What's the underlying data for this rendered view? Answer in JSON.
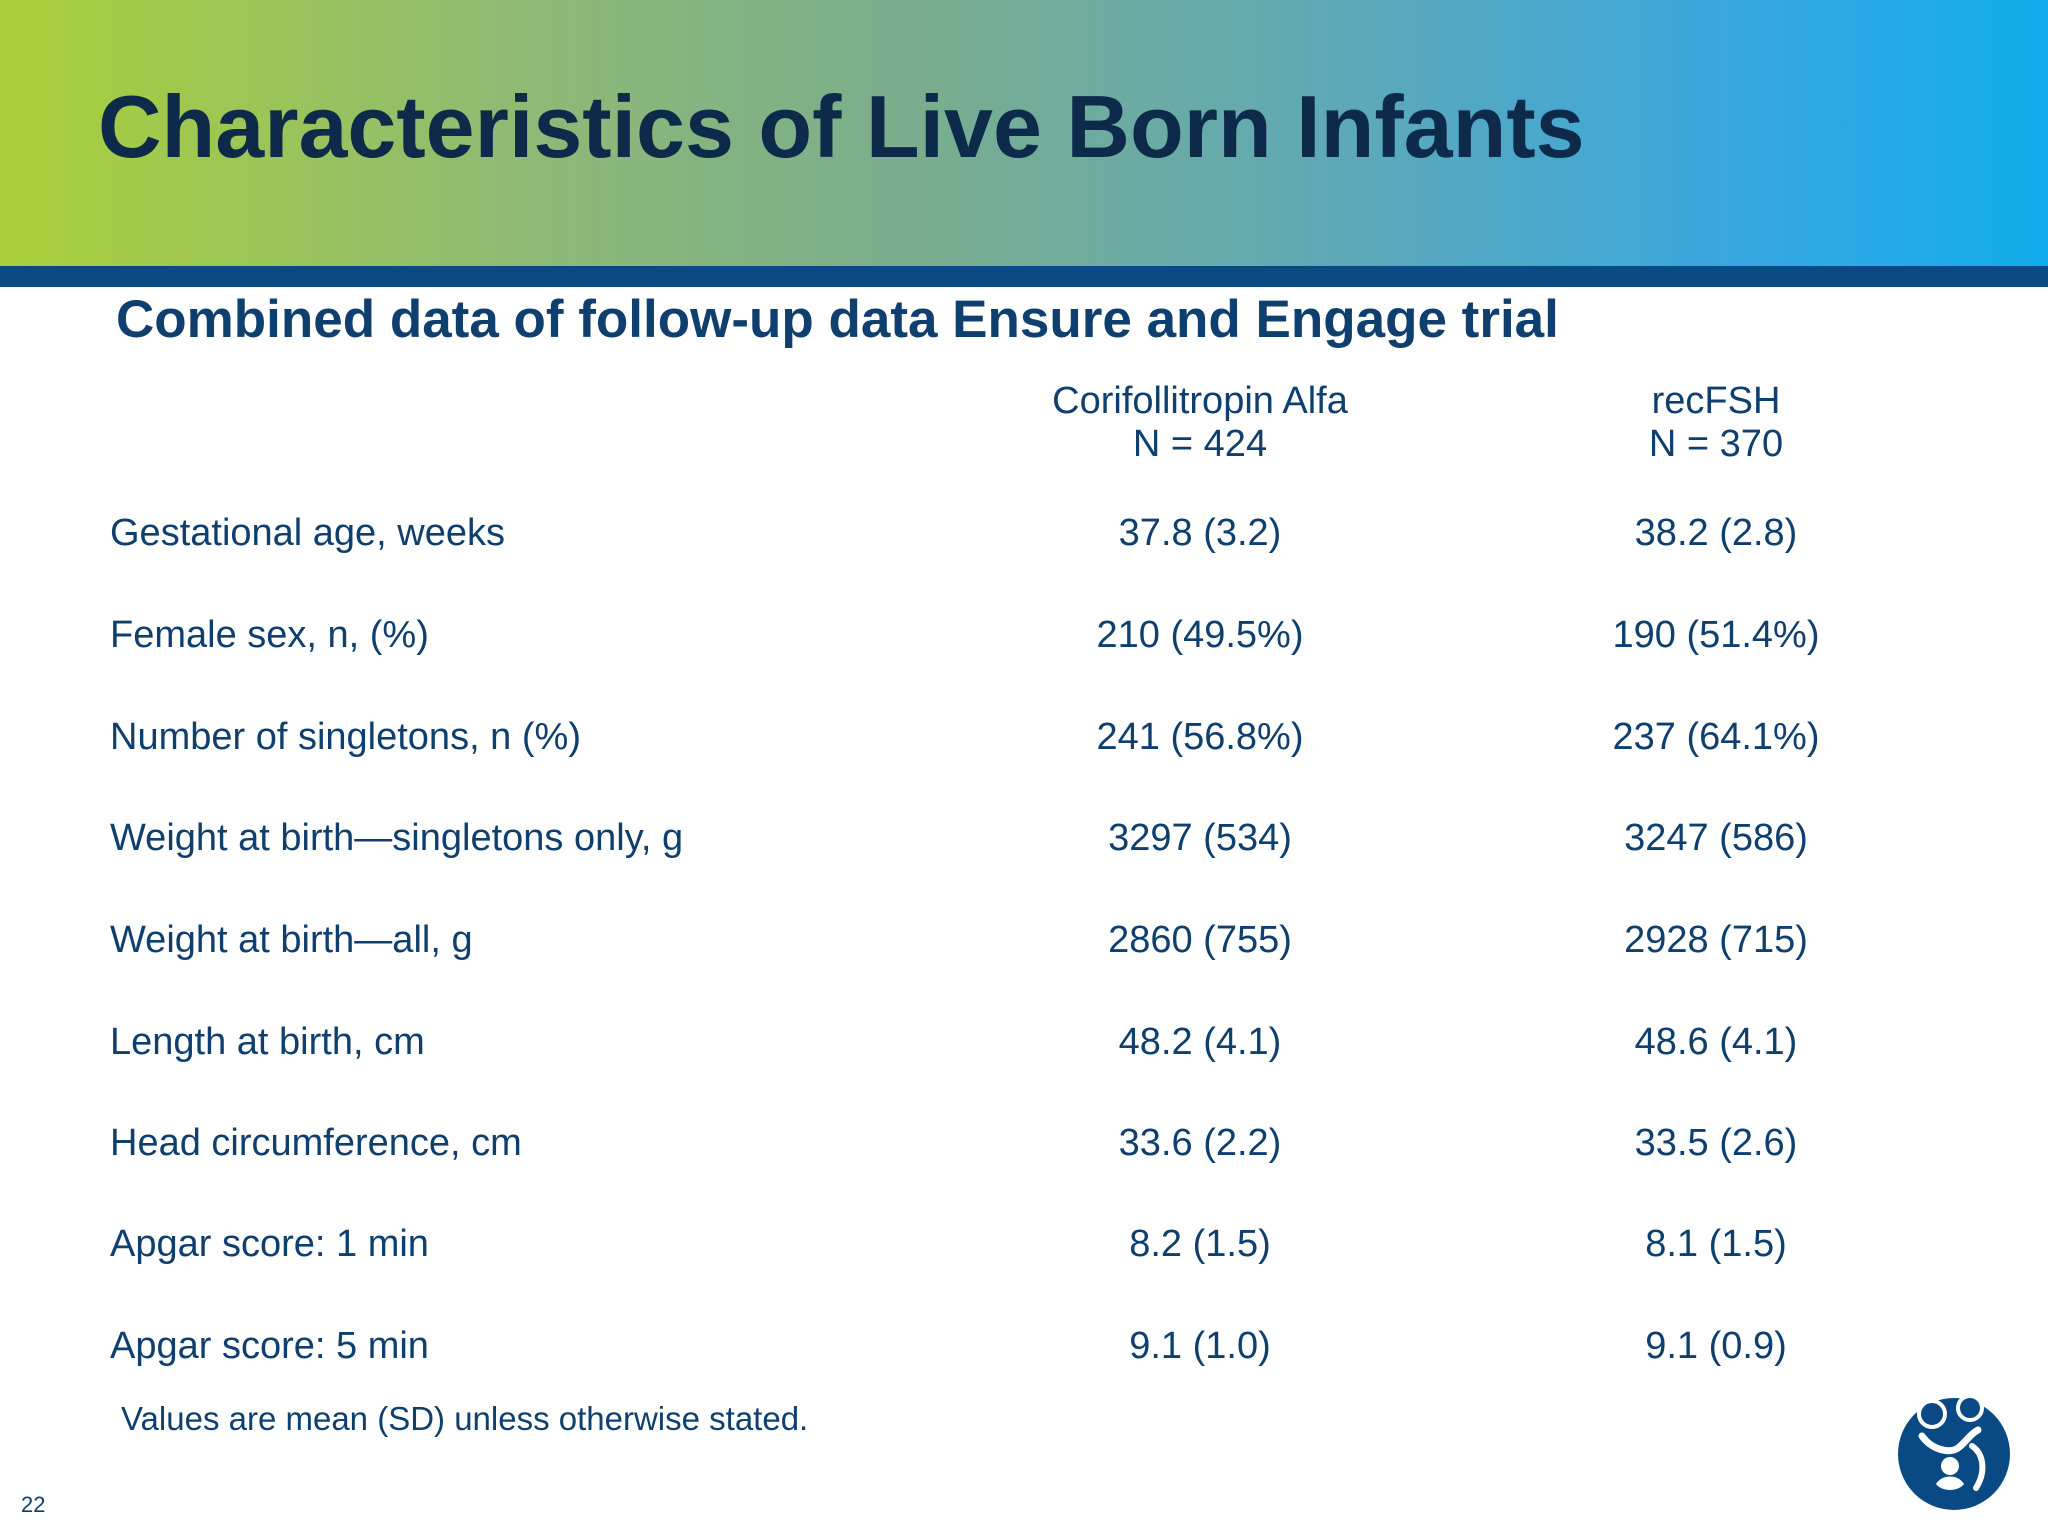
{
  "slide": {
    "title": "Characteristics of Live Born Infants",
    "subtitle": "Combined data of follow-up data Ensure and Engage trial",
    "page_number": "22",
    "footnote": "Values are mean (SD) unless otherwise stated."
  },
  "table": {
    "columns": [
      {
        "name": "Corifollitropin Alfa",
        "n": "N = 424"
      },
      {
        "name": "recFSH",
        "n": "N = 370"
      }
    ],
    "rows": [
      {
        "label": "Gestational age, weeks",
        "values": [
          "37.8 (3.2)",
          "38.2 (2.8)"
        ]
      },
      {
        "label": "Female sex, n, (%)",
        "values": [
          "210 (49.5%)",
          "190 (51.4%)"
        ]
      },
      {
        "label": "Number of singletons, n (%)",
        "values": [
          "241 (56.8%)",
          "237 (64.1%)"
        ]
      },
      {
        "label": "Weight at birth—singletons only, g",
        "values": [
          "3297 (534)",
          "3247 (586)"
        ]
      },
      {
        "label": "Weight at birth—all, g",
        "values": [
          "2860 (755)",
          "2928 (715)"
        ]
      },
      {
        "label": "Length at birth, cm",
        "values": [
          "48.2 (4.1)",
          "48.6 (4.1)"
        ]
      },
      {
        "label": "Head circumference, cm",
        "values": [
          "33.6 (2.2)",
          "33.5 (2.6)"
        ]
      },
      {
        "label": "Apgar score: 1 min",
        "values": [
          "8.2 (1.5)",
          "8.1 (1.5)"
        ]
      },
      {
        "label": "Apgar score: 5 min",
        "values": [
          "9.1 (1.0)",
          "9.1 (0.9)"
        ]
      }
    ]
  },
  "colors": {
    "title_text": "#0d2a4a",
    "body_text": "#0e3f6e",
    "header_rule": "#0a4a84",
    "gradient_start": "#a9d03a",
    "gradient_end": "#11acec",
    "logo": "#0a4a84"
  },
  "icons": {
    "logo": "parent-and-child-logo-icon"
  }
}
